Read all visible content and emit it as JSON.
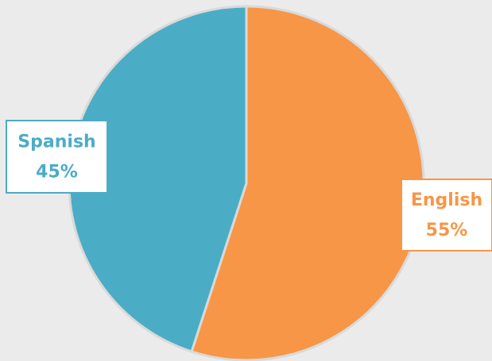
{
  "chart_data": {
    "type": "pie",
    "categories": [
      "English",
      "Spanish"
    ],
    "values": [
      55,
      45
    ],
    "value_labels": [
      "55%",
      "45%"
    ],
    "colors": [
      "#f79646",
      "#4bacc6"
    ]
  }
}
